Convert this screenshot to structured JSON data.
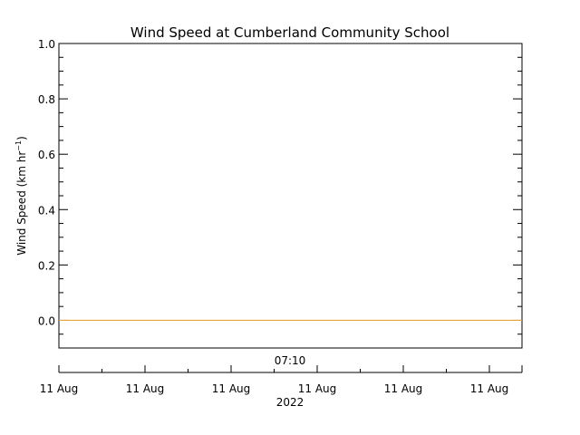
{
  "chart_data": {
    "type": "line",
    "title": "Wind Speed at Cumberland Community School",
    "ylabel_main": "Wind Speed (km hr",
    "ylabel_sup": "−1",
    "ylabel_close": ")",
    "ylim": [
      -0.1,
      1.0
    ],
    "yticks": [
      "0.0",
      "0.2",
      "0.4",
      "0.6",
      "0.8",
      "1.0"
    ],
    "ytick_values": [
      0.0,
      0.2,
      0.4,
      0.6,
      0.8,
      1.0
    ],
    "x_time_label": "07:10",
    "x_ticks": [
      "11 Aug",
      "11 Aug",
      "11 Aug",
      "11 Aug",
      "11 Aug",
      "11 Aug"
    ],
    "x_year": "2022",
    "grid": false,
    "series": [
      {
        "values": [
          0.0,
          0.0
        ],
        "color": "#e8a33d"
      }
    ]
  }
}
